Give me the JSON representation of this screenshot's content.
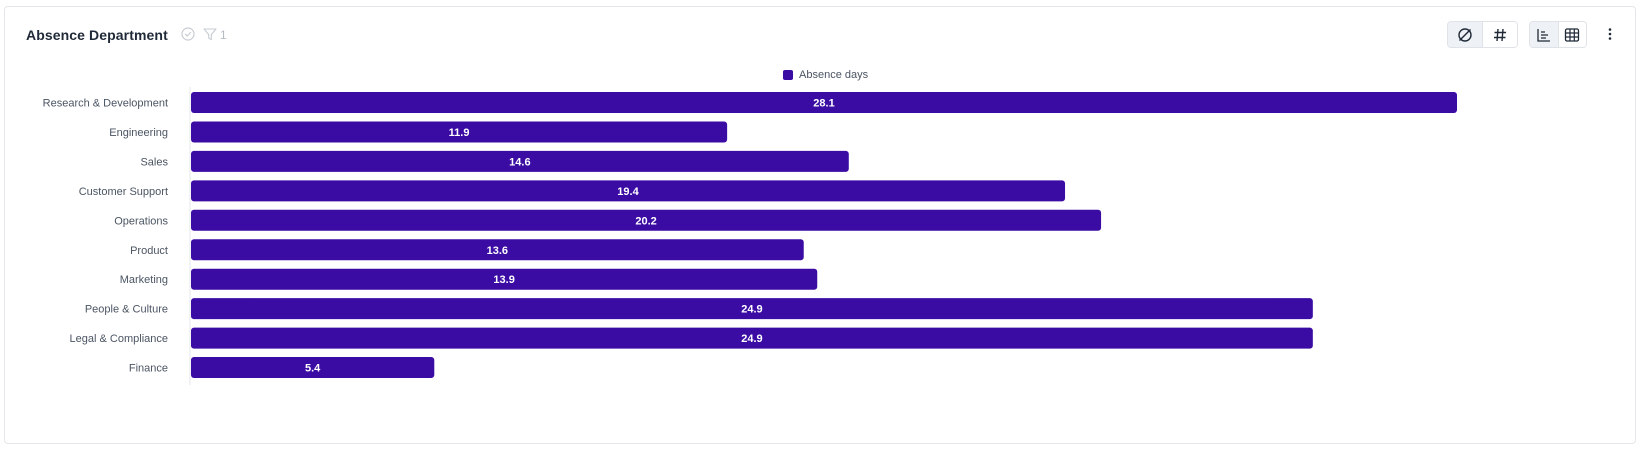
{
  "header": {
    "title": "Absence Department",
    "filter_count": "1"
  },
  "toolbar": {
    "icons": [
      "null-values-icon",
      "number-format-icon",
      "bar-chart-icon",
      "table-view-icon",
      "more-options-icon"
    ]
  },
  "colors": {
    "bar": "#3b0ca3",
    "axis": "#e5e7eb",
    "label": "#4b5563"
  },
  "chart_data": {
    "type": "bar",
    "orientation": "horizontal",
    "title": "Absence Department",
    "categories": [
      "Research & Development",
      "Engineering",
      "Sales",
      "Customer Support",
      "Operations",
      "Product",
      "Marketing",
      "People & Culture",
      "Legal & Compliance",
      "Finance"
    ],
    "series": [
      {
        "name": "Absence days",
        "values": [
          28.1,
          11.9,
          14.6,
          19.4,
          20.2,
          13.6,
          13.9,
          24.9,
          24.9,
          5.4
        ]
      }
    ],
    "xlim": [
      0,
      28.1
    ],
    "grid": false,
    "legend": "top-center",
    "data_labels": true
  }
}
